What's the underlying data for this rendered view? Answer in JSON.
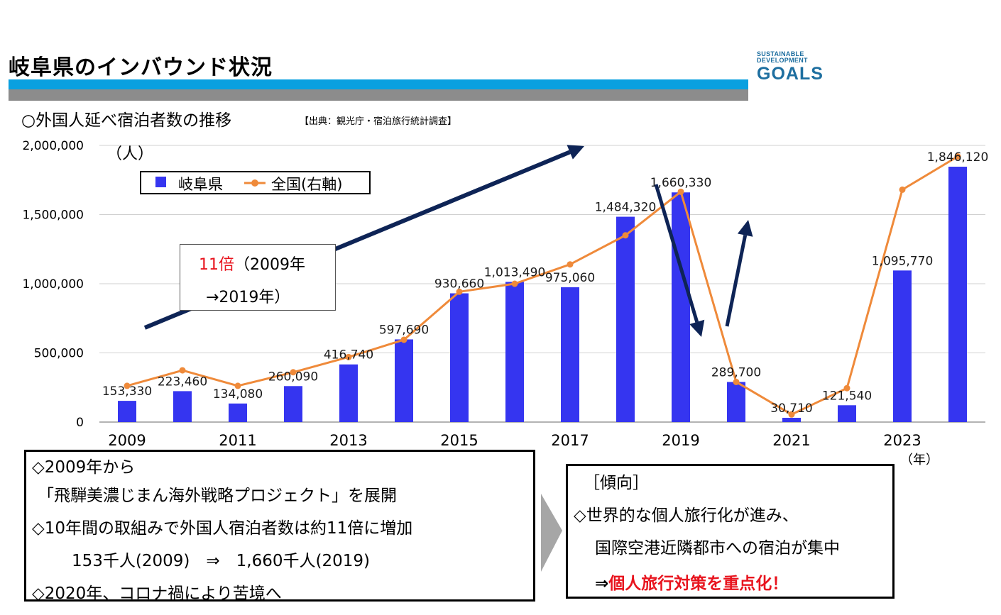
{
  "header": {
    "title": "岐阜県のインバウンド状況",
    "logo_line1": "SUSTAINABLE",
    "logo_line2": "DEVELOPMENT",
    "logo_line3": "GOALS"
  },
  "chart_heading": {
    "title": "○外国人延べ宿泊者数の推移",
    "source": "【出典：観光庁・宿泊旅行統計調査】"
  },
  "chart_data": {
    "type": "bar",
    "unit_label": "（人）",
    "x_unit_label": "（年）",
    "x": [
      2009,
      2010,
      2011,
      2012,
      2013,
      2014,
      2015,
      2016,
      2017,
      2018,
      2019,
      2020,
      2021,
      2022,
      2023,
      2024
    ],
    "x_tick_labels": [
      "2009",
      "2011",
      "2013",
      "2015",
      "2017",
      "2019",
      "2021",
      "2023"
    ],
    "ylim": [
      0,
      2000000
    ],
    "y_tick_labels": [
      "0",
      "500,000",
      "1,000,000",
      "1,500,000",
      "2,000,000"
    ],
    "grid": true,
    "legend_position": "top-left",
    "series": [
      {
        "name": "岐阜県",
        "type": "bar",
        "color": "#3535f0",
        "values": [
          153330,
          223460,
          134080,
          260090,
          416740,
          597690,
          930660,
          1013490,
          975060,
          1484320,
          1660330,
          289700,
          30710,
          121540,
          1095770,
          1846120
        ],
        "data_labels": [
          "153,330",
          "223,460",
          "134,080",
          "260,090",
          "416,740",
          "597,690",
          "930,660",
          "1,013,490",
          "975,060",
          "1,484,320",
          "1,660,330",
          "289,700",
          "30,710",
          "121,540",
          "1,095,770",
          "1,846,120"
        ]
      },
      {
        "name": "全国(右軸)",
        "type": "line",
        "color": "#ef8a3a",
        "values": [
          262000,
          374000,
          262000,
          360000,
          470000,
          595000,
          942000,
          1000000,
          1140000,
          1350000,
          1665000,
          290000,
          55000,
          245000,
          1680000,
          1920000
        ]
      }
    ],
    "annotation": {
      "line1_red": "11倍",
      "line1_rest": "（2009年",
      "line2": "→2019年）"
    }
  },
  "left_notes": {
    "l1": "◇2009年から",
    "l2": "「飛騨美濃じまん海外戦略プロジェクト」を展開",
    "l3": "◇10年間の取組みで外国人宿泊者数は約11倍に増加",
    "l4": "153千人(2009)　⇒　1,660千人(2019)",
    "l5": "◇2020年、コロナ禍により苦境へ"
  },
  "right_notes": {
    "l1": "［傾向］",
    "l2": "◇世界的な個人旅行化が進み、",
    "l3": "国際空港近隣都市への宿泊が集中",
    "l4_arrow": "⇒",
    "l4_red": "個人旅行対策を重点化！"
  },
  "colors": {
    "band_blue": "#0aa0e0",
    "band_gray": "#8c8c8c",
    "arrow_navy": "#0e2456",
    "accent_red": "#e8141e"
  }
}
